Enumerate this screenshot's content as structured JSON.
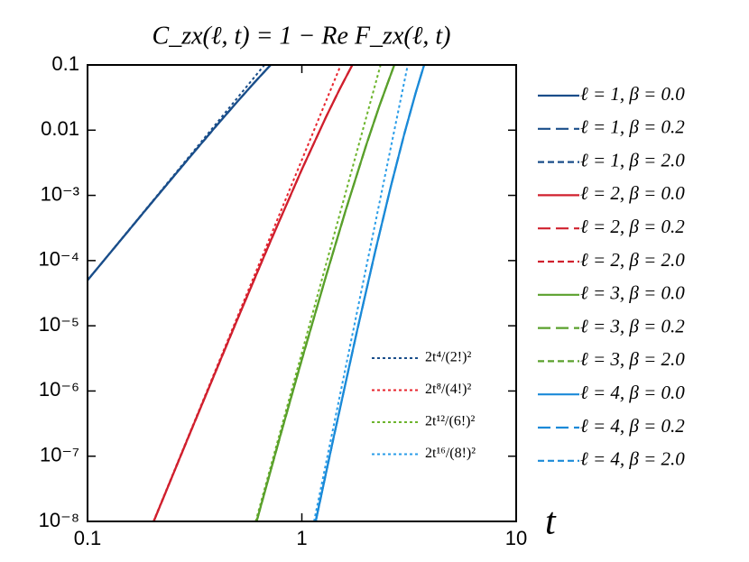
{
  "chart_data": {
    "type": "line",
    "title": "C_zx(ℓ, t) = 1 − Re F_zx(ℓ, t)",
    "x_label": "t",
    "xscale": "log",
    "yscale": "log",
    "xlim": [
      0.1,
      10
    ],
    "ylim": [
      1e-08,
      0.1
    ],
    "xticks": [
      0.1,
      1,
      10
    ],
    "yticks": [
      {
        "value": 1e-08,
        "label": "10⁻⁸"
      },
      {
        "value": 1e-07,
        "label": "10⁻⁷"
      },
      {
        "value": 1e-06,
        "label": "10⁻⁶"
      },
      {
        "value": 1e-05,
        "label": "10⁻⁵"
      },
      {
        "value": 0.0001,
        "label": "10⁻⁴"
      },
      {
        "value": 0.001,
        "label": "10⁻³"
      },
      0.01,
      0.1
    ],
    "series": [
      {
        "name": "ℓ = 1, β = 0.0",
        "color": "#1a4e8a",
        "linestyle": "solid",
        "x": [
          0.1,
          0.2,
          0.3,
          0.4,
          0.5,
          0.6,
          0.7,
          0.716
        ],
        "values": [
          5e-05,
          0.000783,
          0.00386,
          0.01176,
          0.02737,
          0.05353,
          0.09256,
          0.1
        ]
      },
      {
        "name": "ℓ = 1, β = 0.2",
        "color": "#1a4e8a",
        "linestyle": "dashed",
        "x": [
          0.1,
          0.2,
          0.3,
          0.4,
          0.5,
          0.6,
          0.7,
          0.716
        ],
        "values": [
          5e-05,
          0.000783,
          0.00386,
          0.01176,
          0.02737,
          0.05353,
          0.09256,
          0.1
        ]
      },
      {
        "name": "ℓ = 1, β = 2.0",
        "color": "#1a4e8a",
        "linestyle": "short-dashed",
        "x": [
          0.1,
          0.2,
          0.3,
          0.4,
          0.5,
          0.6,
          0.7,
          0.716
        ],
        "values": [
          5e-05,
          0.000783,
          0.00386,
          0.01176,
          0.02737,
          0.05353,
          0.09256,
          0.1
        ]
      },
      {
        "name": "ℓ = 2, β = 0.0",
        "color": "#d0202e",
        "linestyle": "solid",
        "x": [
          0.2036,
          0.3,
          0.5,
          0.7,
          1.0,
          1.3,
          1.5,
          1.72
        ],
        "values": [
          1e-08,
          2.21e-07,
          1.249e-05,
          0.0001703,
          0.002496,
          0.01622,
          0.04236,
          0.1
        ]
      },
      {
        "name": "ℓ = 2, β = 0.2",
        "color": "#d0202e",
        "linestyle": "dashed",
        "x": [
          0.2036,
          0.3,
          0.5,
          0.7,
          1.0,
          1.3,
          1.5,
          1.72
        ],
        "values": [
          1e-08,
          2.21e-07,
          1.249e-05,
          0.0001703,
          0.002496,
          0.01622,
          0.04236,
          0.1
        ]
      },
      {
        "name": "ℓ = 2, β = 2.0",
        "color": "#d0202e",
        "linestyle": "short-dashed",
        "x": [
          0.2036,
          0.3,
          0.5,
          0.7,
          1.0,
          1.3,
          1.5,
          1.72
        ],
        "values": [
          1e-08,
          2.21e-07,
          1.249e-05,
          0.0001703,
          0.002496,
          0.01622,
          0.04236,
          0.1
        ]
      },
      {
        "name": "ℓ = 3, β = 0.0",
        "color": "#5aa02c",
        "linestyle": "solid",
        "x": [
          0.615,
          0.8,
          1.0,
          1.3,
          1.6,
          2.0,
          2.3,
          2.7
        ],
        "values": [
          1e-08,
          2.27e-07,
          3.03e-06,
          5.97e-05,
          0.000584,
          0.006,
          0.02352,
          0.1
        ]
      },
      {
        "name": "ℓ = 3, β = 0.2",
        "color": "#5aa02c",
        "linestyle": "dashed",
        "x": [
          0.615,
          0.8,
          1.0,
          1.3,
          1.6,
          2.0,
          2.3,
          2.7
        ],
        "values": [
          1e-08,
          2.27e-07,
          3.03e-06,
          5.97e-05,
          0.000584,
          0.006,
          0.02352,
          0.1
        ]
      },
      {
        "name": "ℓ = 3, β = 2.0",
        "color": "#5aa02c",
        "linestyle": "short-dashed",
        "x": [
          0.615,
          0.8,
          1.0,
          1.3,
          1.6,
          2.0,
          2.3,
          2.7
        ],
        "values": [
          1e-08,
          2.27e-07,
          3.03e-06,
          5.97e-05,
          0.000584,
          0.006,
          0.02352,
          0.1
        ]
      },
      {
        "name": "ℓ = 4, β = 0.0",
        "color": "#1b8ad8",
        "linestyle": "solid",
        "x": [
          1.16,
          1.4,
          1.8,
          2.2,
          2.6,
          3.0,
          3.4,
          3.72
        ],
        "values": [
          1e-08,
          1.8e-07,
          7.74e-06,
          0.0001389,
          0.001364,
          0.00854,
          0.0377,
          0.1
        ]
      },
      {
        "name": "ℓ = 4, β = 0.2",
        "color": "#1b8ad8",
        "linestyle": "dashed",
        "x": [
          1.16,
          1.4,
          1.8,
          2.2,
          2.6,
          3.0,
          3.4,
          3.72
        ],
        "values": [
          1e-08,
          1.8e-07,
          7.74e-06,
          0.0001389,
          0.001364,
          0.00854,
          0.0377,
          0.1
        ]
      },
      {
        "name": "ℓ = 4, β = 2.0",
        "color": "#1b8ad8",
        "linestyle": "short-dashed",
        "x": [
          1.16,
          1.4,
          1.8,
          2.2,
          2.6,
          3.0,
          3.4,
          3.72
        ],
        "values": [
          1e-08,
          1.8e-07,
          7.74e-06,
          0.0001389,
          0.001364,
          0.00854,
          0.0377,
          0.1
        ]
      }
    ],
    "approximations": [
      {
        "name": "2t⁴/(2!)²",
        "color": "#1a4e8a",
        "linestyle": "dotted",
        "x": [
          0.1,
          0.669
        ],
        "values": [
          5e-05,
          0.1
        ]
      },
      {
        "name": "2t⁸/(4!)²",
        "color": "#e8242e",
        "linestyle": "dotted",
        "x": [
          0.203,
          1.52
        ],
        "values": [
          1e-08,
          0.1
        ]
      },
      {
        "name": "2t¹²/(6!)²",
        "color": "#6cb42c",
        "linestyle": "dotted",
        "x": [
          0.609,
          2.33
        ],
        "values": [
          1e-08,
          0.1
        ]
      },
      {
        "name": "2t¹⁶/(8!)²",
        "color": "#2a9de8",
        "linestyle": "dotted",
        "x": [
          1.14,
          3.12
        ],
        "values": [
          1e-08,
          0.1
        ]
      }
    ]
  }
}
